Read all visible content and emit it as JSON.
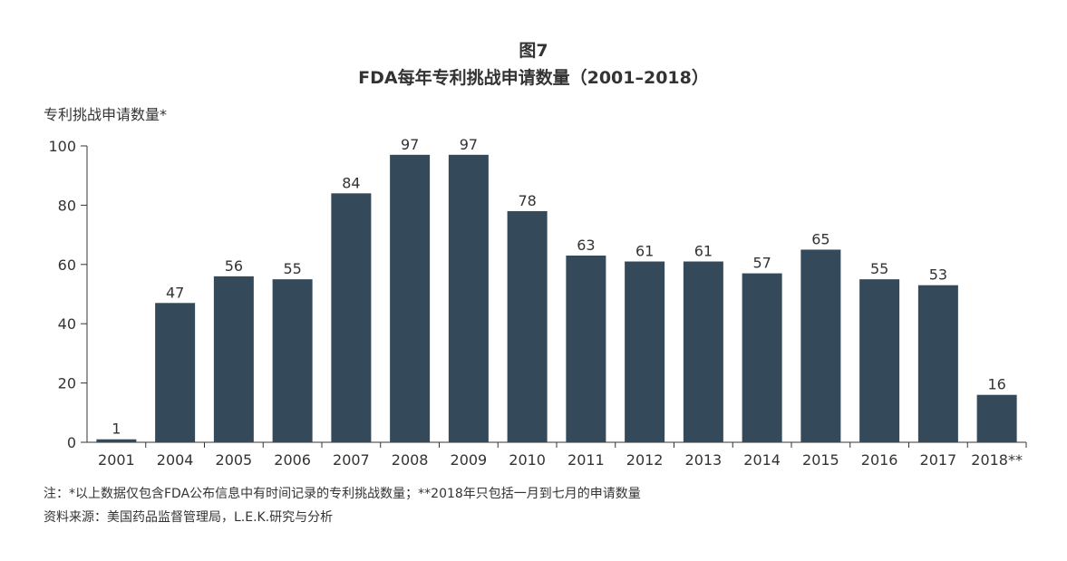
{
  "figure_number": "图7",
  "figure_title": "FDA每年专利挑战申请数量（2001–2018）",
  "footnote": "注：*以上数据仅包含FDA公布信息中有时间记录的专利挑战数量；**2018年只包括一月到七月的申请数量",
  "source": "资料来源：美国药品监督管理局，L.E.K.研究与分析",
  "colors": {
    "bar": "#344a5a",
    "axis": "#333333",
    "text": "#333333"
  },
  "chart_data": {
    "type": "bar",
    "title": "FDA每年专利挑战申请数量（2001–2018）",
    "ylabel": "专利挑战申请数量*",
    "xlabel": "",
    "categories": [
      "2001",
      "2004",
      "2005",
      "2006",
      "2007",
      "2008",
      "2009",
      "2010",
      "2011",
      "2012",
      "2013",
      "2014",
      "2015",
      "2016",
      "2017",
      "2018**"
    ],
    "values": [
      1,
      47,
      56,
      55,
      84,
      97,
      97,
      78,
      63,
      61,
      61,
      57,
      65,
      55,
      53,
      16
    ],
    "data_labels": [
      "1",
      "47",
      "56",
      "55",
      "84",
      "97",
      "97",
      "78",
      "63",
      "61",
      "61",
      "57",
      "65",
      "55",
      "53",
      "16"
    ],
    "ylim": [
      0,
      100
    ],
    "yticks": [
      "0",
      "20",
      "40",
      "60",
      "80",
      "100"
    ],
    "grid": false,
    "legend": "none"
  }
}
